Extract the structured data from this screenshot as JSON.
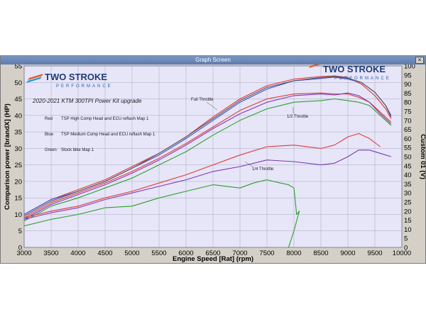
{
  "window": {
    "title": "Graph Screen",
    "close_label": "×"
  },
  "logo": {
    "name": "TWO STROKE",
    "tagline": "PERFORMANCE",
    "colors": [
      "#e8541a",
      "#1e9ad6",
      "#1f5fa8"
    ]
  },
  "legend": {
    "title": "2020-2021 KTM 300TPI Power Kit upgrade",
    "entries": [
      {
        "color_name": "Red",
        "color": "#e03a3a",
        "text": "TSP High Comp Head and ECU reflash Map 1"
      },
      {
        "color_name": "Blue",
        "color": "#3a4fd0",
        "text": "TSP Medium Comp Head and ECU reflash Map 1"
      },
      {
        "color_name": "Green",
        "color": "#2ca02c",
        "text": "Stock bike Map 1"
      }
    ]
  },
  "annotations": [
    "Full Throttle",
    "1/2 Throttle",
    "1/4 Throttle"
  ],
  "colors": {
    "plot_bg": "#e7e5f8",
    "grid": "#a8a8bc",
    "axis_bg": "#d4d0c8"
  },
  "chart_data": {
    "type": "line",
    "xlabel": "Engine Speed [Rat] (rpm)",
    "ylabel": "Comparison power [brandX] (HP)",
    "y2label": "Custom 01 (V)",
    "xlim": [
      3000,
      10000
    ],
    "ylim": [
      0,
      55
    ],
    "y2lim": [
      0,
      100
    ],
    "x_ticks": [
      3000,
      3500,
      4000,
      4500,
      5000,
      5500,
      6000,
      6500,
      7000,
      7500,
      8000,
      8500,
      9000,
      9500,
      10000
    ],
    "y_ticks": [
      0,
      5,
      10,
      15,
      20,
      25,
      30,
      35,
      40,
      45,
      50,
      55
    ],
    "y2_ticks": [
      0,
      5,
      10,
      15,
      20,
      25,
      30,
      35,
      40,
      45,
      50,
      55,
      60,
      65,
      70,
      75,
      80,
      85,
      90,
      95,
      100
    ],
    "grid": true,
    "series": [
      {
        "color": "#e03a3a",
        "x": [
          3000,
          3500,
          4000,
          4500,
          5000,
          5500,
          6000,
          6500,
          7000,
          7500,
          8000,
          8500,
          8750,
          9000,
          9250,
          9500,
          9700,
          9800
        ],
        "y": [
          10,
          14.5,
          17.5,
          20.5,
          24.5,
          28.5,
          33.5,
          39.5,
          45,
          49,
          51,
          51.8,
          52,
          51.5,
          49.5,
          46,
          42,
          39
        ]
      },
      {
        "color": "#3a4fd0",
        "x": [
          3000,
          3500,
          4000,
          4500,
          5000,
          5500,
          6000,
          6500,
          7000,
          7500,
          8000,
          8500,
          8750,
          9000,
          9250,
          9500,
          9700,
          9800
        ],
        "y": [
          10,
          14.5,
          17,
          20,
          24,
          28,
          33,
          38.5,
          44,
          48,
          50.5,
          51.2,
          51.6,
          51,
          50,
          47,
          43,
          40
        ]
      },
      {
        "color": "#555555",
        "x": [
          3000,
          3500,
          4000,
          4500,
          5000,
          5500,
          6000,
          6500,
          7000,
          7500,
          8000,
          8500,
          8750,
          9000,
          9250,
          9500,
          9700,
          9800
        ],
        "y": [
          9.5,
          14,
          17,
          20,
          24,
          28.5,
          33.5,
          39,
          44.5,
          48.5,
          50.5,
          51.5,
          51.8,
          51.3,
          50,
          47,
          43,
          39.5
        ]
      },
      {
        "color": "#e03a3a",
        "x": [
          3000,
          3500,
          4000,
          4500,
          5000,
          5500,
          6000,
          6500,
          7000,
          7500,
          8000,
          8500,
          8750,
          9000,
          9200,
          9400,
          9600,
          9800
        ],
        "y": [
          9,
          13.5,
          16.5,
          19.5,
          23,
          27,
          31.5,
          36.5,
          41.5,
          45,
          46.5,
          46.8,
          46.5,
          46.5,
          45.5,
          44,
          41,
          38
        ]
      },
      {
        "color": "#7a3ab8",
        "x": [
          3000,
          3500,
          4000,
          4500,
          5000,
          5500,
          6000,
          6500,
          7000,
          7500,
          8000,
          8500,
          8750,
          9000,
          9200,
          9400,
          9600,
          9800
        ],
        "y": [
          8.5,
          13,
          16,
          19,
          22.5,
          26.5,
          31,
          36,
          40.5,
          44,
          46,
          46.5,
          46.2,
          46.8,
          46,
          44,
          40.5,
          37.5
        ]
      },
      {
        "color": "#2ca02c",
        "x": [
          3000,
          3500,
          4000,
          4500,
          5000,
          5500,
          6000,
          6500,
          7000,
          7500,
          8000,
          8500,
          8750,
          9000,
          9200,
          9400,
          9600,
          9800
        ],
        "y": [
          8,
          12.5,
          15,
          18,
          21,
          25,
          29,
          34,
          38.5,
          42,
          44,
          44.5,
          45,
          44.5,
          44,
          43,
          40,
          37
        ]
      },
      {
        "color": "#e03a3a",
        "x": [
          3000,
          3500,
          4000,
          4500,
          5000,
          5500,
          6000,
          6500,
          7000,
          7500,
          8000,
          8500,
          8750,
          9000,
          9200,
          9400,
          9600
        ],
        "y": [
          9,
          11,
          12.5,
          15,
          17,
          19.5,
          22,
          25,
          28,
          30.5,
          31,
          30,
          31,
          33.5,
          34.5,
          33,
          30.5
        ]
      },
      {
        "color": "#7a3ab8",
        "x": [
          3000,
          3500,
          4000,
          4500,
          5000,
          5500,
          6000,
          6500,
          7000,
          7500,
          8000,
          8500,
          8750,
          9000,
          9200,
          9400,
          9600,
          9800
        ],
        "y": [
          8.5,
          10.5,
          12,
          14.5,
          16.5,
          18.5,
          20.5,
          23,
          24.5,
          26.5,
          26,
          25,
          25.5,
          27.5,
          29.5,
          29.5,
          28.5,
          27.5
        ]
      },
      {
        "color": "#2ca02c",
        "x": [
          3000,
          3500,
          4000,
          4500,
          5000,
          5500,
          6000,
          6500,
          7000,
          7250,
          7500,
          7750,
          7900,
          8000,
          8050,
          8100,
          8000,
          7900
        ],
        "y": [
          6.5,
          8.5,
          10,
          12,
          12.5,
          15,
          17,
          19,
          18,
          19.5,
          20.5,
          19.5,
          19,
          18,
          10,
          11,
          5,
          0
        ]
      }
    ]
  }
}
